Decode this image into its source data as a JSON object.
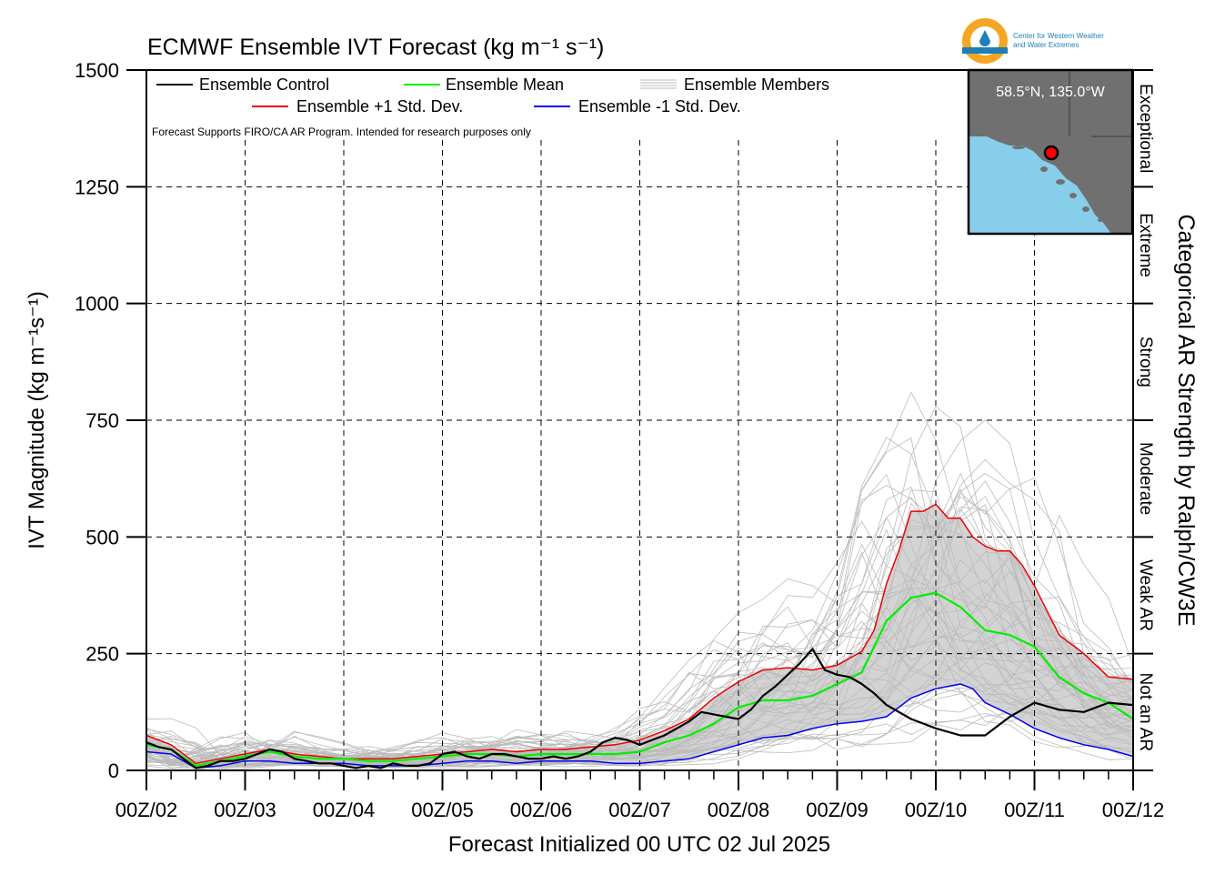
{
  "chart_data": {
    "type": "line",
    "title": "ECMWF Ensemble IVT Forecast (kg m⁻¹ s⁻¹)",
    "xlabel": "Forecast Initialized 00 UTC 02 Jul 2025",
    "ylabel": "IVT Magnitude (kg m⁻¹s⁻¹)",
    "right_label": "Categorical AR Strength by Ralph/CW3E",
    "note": "Forecast Supports FIRO/CA AR Program. Intended for research purposes only",
    "ylim": [
      0,
      1500
    ],
    "xlim": [
      0,
      240
    ],
    "x_unit": "forecast hours from 00Z/02",
    "yticks": [
      0,
      250,
      500,
      750,
      1000,
      1250,
      1500
    ],
    "xtick_labels": [
      "00Z/02",
      "00Z/03",
      "00Z/04",
      "00Z/05",
      "00Z/06",
      "00Z/07",
      "00Z/08",
      "00Z/09",
      "00Z/10",
      "00Z/11",
      "00Z/12"
    ],
    "categories": [
      {
        "label": "Not an AR",
        "from": 0,
        "to": 250
      },
      {
        "label": "Weak AR",
        "from": 250,
        "to": 500
      },
      {
        "label": "Moderate",
        "from": 500,
        "to": 750
      },
      {
        "label": "Strong",
        "from": 750,
        "to": 1000
      },
      {
        "label": "Extreme",
        "from": 1000,
        "to": 1250
      },
      {
        "label": "Exceptional",
        "from": 1250,
        "to": 1500
      }
    ],
    "grid": true,
    "legend_position": "top-left",
    "series": [
      {
        "name": "Ensemble Control",
        "color": "#000000",
        "x": [
          0,
          3,
          6,
          9,
          12,
          15,
          18,
          21,
          24,
          27,
          30,
          33,
          36,
          39,
          42,
          45,
          48,
          51,
          54,
          57,
          60,
          63,
          66,
          69,
          72,
          75,
          78,
          81,
          84,
          87,
          90,
          93,
          96,
          99,
          102,
          105,
          108,
          111,
          114,
          117,
          120,
          123,
          126,
          129,
          132,
          135,
          138,
          141,
          144,
          147,
          150,
          153,
          156,
          159,
          162,
          165,
          168,
          171,
          174,
          177,
          180,
          186,
          192,
          198,
          204,
          210,
          216,
          222,
          228,
          234,
          240
        ],
        "y": [
          60,
          50,
          45,
          25,
          5,
          10,
          20,
          20,
          25,
          35,
          45,
          40,
          25,
          20,
          15,
          15,
          10,
          5,
          10,
          5,
          15,
          10,
          10,
          15,
          35,
          40,
          30,
          25,
          35,
          35,
          30,
          25,
          25,
          30,
          25,
          30,
          40,
          60,
          70,
          65,
          55,
          65,
          75,
          90,
          105,
          125,
          120,
          115,
          110,
          130,
          160,
          180,
          205,
          230,
          260,
          215,
          205,
          200,
          185,
          165,
          140,
          110,
          90,
          75,
          75,
          115,
          145,
          130,
          125,
          145,
          140
        ]
      },
      {
        "name": "Ensemble Mean",
        "color": "#00ee00",
        "x": [
          0,
          6,
          12,
          18,
          24,
          30,
          36,
          42,
          48,
          54,
          60,
          66,
          72,
          78,
          84,
          90,
          96,
          102,
          108,
          114,
          120,
          126,
          132,
          138,
          144,
          150,
          156,
          162,
          168,
          174,
          180,
          186,
          192,
          198,
          204,
          210,
          216,
          222,
          228,
          234,
          240
        ],
        "y": [
          55,
          45,
          10,
          20,
          30,
          40,
          30,
          25,
          25,
          20,
          20,
          25,
          30,
          35,
          35,
          30,
          35,
          35,
          35,
          35,
          40,
          60,
          75,
          100,
          135,
          150,
          150,
          160,
          185,
          210,
          320,
          370,
          380,
          350,
          300,
          290,
          265,
          200,
          165,
          145,
          110
        ]
      },
      {
        "name": "Ensemble +1 Std. Dev.",
        "color": "#ee0000",
        "x": [
          0,
          6,
          12,
          18,
          24,
          30,
          36,
          42,
          48,
          54,
          60,
          66,
          72,
          78,
          84,
          90,
          96,
          102,
          108,
          114,
          120,
          126,
          132,
          138,
          144,
          150,
          156,
          162,
          168,
          174,
          177,
          180,
          183,
          186,
          189,
          192,
          195,
          198,
          201,
          204,
          207,
          210,
          213,
          216,
          222,
          228,
          234,
          240
        ],
        "y": [
          75,
          55,
          15,
          25,
          35,
          45,
          35,
          30,
          25,
          25,
          25,
          30,
          35,
          40,
          45,
          40,
          45,
          45,
          50,
          55,
          65,
          85,
          110,
          155,
          190,
          215,
          220,
          215,
          225,
          255,
          300,
          400,
          470,
          555,
          555,
          570,
          540,
          540,
          500,
          480,
          470,
          470,
          440,
          395,
          290,
          250,
          200,
          195
        ]
      },
      {
        "name": "Ensemble -1 Std. Dev.",
        "color": "#0000ee",
        "x": [
          0,
          6,
          12,
          18,
          24,
          30,
          36,
          42,
          48,
          54,
          60,
          66,
          72,
          78,
          84,
          90,
          96,
          102,
          108,
          114,
          120,
          126,
          132,
          138,
          144,
          150,
          156,
          162,
          168,
          174,
          180,
          183,
          186,
          189,
          192,
          195,
          198,
          201,
          204,
          210,
          216,
          222,
          228,
          234,
          240
        ],
        "y": [
          40,
          35,
          5,
          10,
          20,
          20,
          15,
          15,
          15,
          10,
          10,
          10,
          15,
          20,
          20,
          15,
          20,
          20,
          20,
          15,
          15,
          20,
          25,
          40,
          55,
          70,
          75,
          90,
          100,
          105,
          115,
          135,
          155,
          165,
          175,
          180,
          185,
          175,
          145,
          120,
          90,
          70,
          55,
          45,
          30
        ]
      },
      {
        "name": "Ensemble Members",
        "color": "#bbbbbb",
        "count": 50,
        "x_step": 6,
        "display": "background"
      }
    ],
    "spread_band": {
      "color": "#d3d3d3"
    }
  },
  "map_inset": {
    "location_label": "58.5°N, 135.0°W",
    "land_color": "#707070",
    "water_color": "#87ceeb",
    "marker_color": "#ff0000"
  },
  "logo": {
    "line1": "Center for Western Weather",
    "line2": "and Water Extremes",
    "ring_color": "#f5a623",
    "band_color": "#1e7fb8"
  }
}
